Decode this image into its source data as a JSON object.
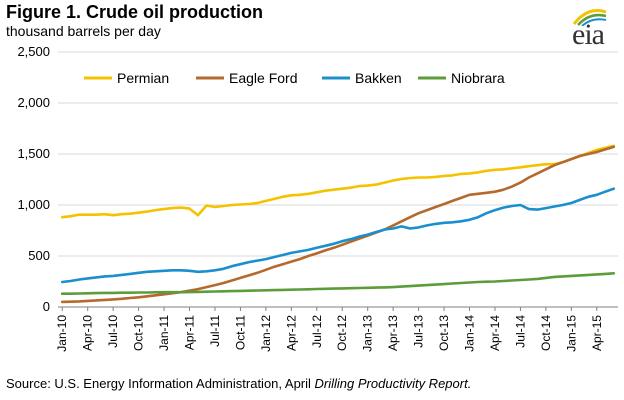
{
  "figure": {
    "title": "Figure 1.  Crude oil production",
    "subtitle": "thousand barrels per day",
    "logo_text": "eia",
    "source_prefix": "Source:  U.S. Energy Information Administration, April ",
    "source_italic": "Drilling Productivity Report."
  },
  "colors": {
    "permian": "#f5c200",
    "eagle_ford": "#b5692c",
    "bakken": "#1a8fce",
    "niobrara": "#5c9c3a",
    "logo_arc_1": "#f5c200",
    "logo_arc_2": "#5c9c3a",
    "logo_arc_3": "#1a8fce"
  },
  "chart_data": {
    "type": "line",
    "title": "Crude oil production",
    "ylabel": "thousand barrels per day",
    "ylim": [
      0,
      2500
    ],
    "yticks": [
      "0",
      "500",
      "1,000",
      "1,500",
      "2,000",
      "2,500"
    ],
    "ytick_values": [
      0,
      500,
      1000,
      1500,
      2000,
      2500
    ],
    "xtick_labels": [
      "Jan-10",
      "Apr-10",
      "Jul-10",
      "Oct-10",
      "Jan-11",
      "Apr-11",
      "Jul-11",
      "Oct-11",
      "Jan-12",
      "Apr-12",
      "Jul-12",
      "Oct-12",
      "Jan-13",
      "Apr-13",
      "Jul-13",
      "Oct-13",
      "Jan-14",
      "Apr-14",
      "Jul-14",
      "Oct-14",
      "Jan-15",
      "Apr-15"
    ],
    "x_start": "Jan-10",
    "n_months": 66,
    "grid": "horizontal",
    "legend_position": "top",
    "series": [
      {
        "name": "Permian",
        "key": "permian",
        "values": [
          880,
          890,
          905,
          905,
          905,
          910,
          900,
          910,
          915,
          925,
          935,
          950,
          960,
          970,
          975,
          965,
          900,
          995,
          980,
          990,
          1000,
          1005,
          1010,
          1020,
          1040,
          1060,
          1080,
          1095,
          1100,
          1110,
          1125,
          1140,
          1150,
          1160,
          1170,
          1185,
          1190,
          1200,
          1220,
          1240,
          1255,
          1265,
          1270,
          1270,
          1275,
          1285,
          1290,
          1305,
          1310,
          1320,
          1335,
          1345,
          1350,
          1360,
          1370,
          1380,
          1390,
          1400,
          1400,
          1420,
          1450,
          1480,
          1510,
          1540,
          1560,
          1580
        ]
      },
      {
        "name": "Eagle Ford",
        "key": "eagle_ford",
        "values": [
          50,
          52,
          55,
          60,
          65,
          70,
          75,
          80,
          88,
          95,
          105,
          115,
          125,
          135,
          145,
          160,
          175,
          195,
          215,
          235,
          260,
          285,
          310,
          335,
          365,
          395,
          420,
          445,
          470,
          500,
          525,
          555,
          580,
          610,
          640,
          670,
          700,
          730,
          760,
          800,
          840,
          880,
          920,
          950,
          980,
          1010,
          1040,
          1070,
          1100,
          1110,
          1120,
          1130,
          1150,
          1180,
          1220,
          1270,
          1310,
          1350,
          1390,
          1420,
          1450,
          1480,
          1500,
          1520,
          1545,
          1570
        ]
      },
      {
        "name": "Bakken",
        "key": "bakken",
        "values": [
          245,
          255,
          270,
          280,
          290,
          300,
          305,
          315,
          325,
          335,
          345,
          350,
          355,
          360,
          360,
          355,
          345,
          350,
          360,
          375,
          400,
          420,
          440,
          455,
          470,
          490,
          510,
          530,
          545,
          560,
          580,
          600,
          620,
          645,
          665,
          690,
          710,
          735,
          760,
          770,
          790,
          770,
          780,
          800,
          815,
          825,
          830,
          840,
          855,
          880,
          920,
          950,
          975,
          990,
          1000,
          960,
          955,
          970,
          985,
          1000,
          1020,
          1050,
          1080,
          1100,
          1130,
          1160
        ]
      },
      {
        "name": "Niobrara",
        "key": "niobrara",
        "values": [
          130,
          130,
          132,
          134,
          136,
          138,
          138,
          140,
          140,
          142,
          142,
          144,
          145,
          145,
          145,
          146,
          148,
          150,
          152,
          154,
          156,
          158,
          160,
          162,
          164,
          166,
          168,
          170,
          172,
          174,
          176,
          178,
          180,
          182,
          184,
          186,
          188,
          190,
          192,
          195,
          200,
          205,
          210,
          215,
          220,
          225,
          230,
          235,
          240,
          245,
          248,
          250,
          255,
          260,
          265,
          270,
          275,
          285,
          295,
          300,
          305,
          310,
          315,
          320,
          325,
          330
        ]
      }
    ]
  }
}
